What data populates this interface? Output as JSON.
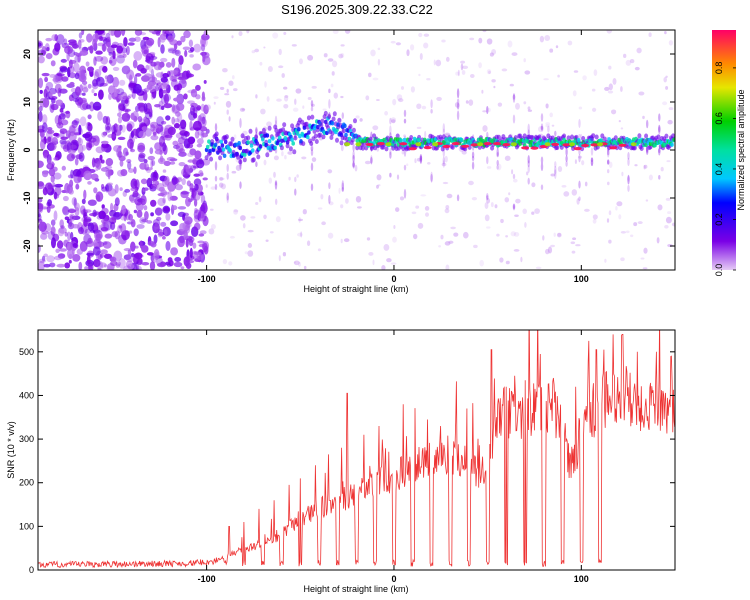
{
  "figure_title": "S196.2025.309.22.33.C22",
  "chart_data": [
    {
      "type": "heatmap",
      "name": "spectrogram",
      "xlabel": "Height of straight line (km)",
      "ylabel": "Frequency (Hz)",
      "xlim": [
        -190,
        150
      ],
      "ylim": [
        -25,
        25
      ],
      "xticks": [
        -100,
        0,
        100
      ],
      "xtick_labels": [
        "-100",
        "0",
        "100"
      ],
      "yticks": [
        -20,
        -10,
        0,
        10,
        20
      ],
      "ytick_labels": [
        "-20",
        "-10",
        "0",
        "10",
        "20"
      ],
      "colorbar": {
        "label": "Normalized spectral amplitude",
        "range": [
          0,
          0.95
        ],
        "ticks": [
          0.0,
          0.2,
          0.4,
          0.6,
          0.8
        ],
        "tick_labels": [
          "0.0",
          "0.2",
          "0.4",
          "0.6",
          "0.8"
        ],
        "colormap": "rainbow"
      },
      "regions": [
        {
          "x_range": [
            -190,
            -100
          ],
          "description_level": 0.1,
          "freq_spread": 25
        },
        {
          "x_range": [
            -100,
            -20
          ],
          "description_level": 0.25,
          "freq_spread": 5
        },
        {
          "x_range": [
            -20,
            150
          ],
          "description_level": 0.7,
          "freq_spread": 2
        }
      ]
    },
    {
      "type": "line",
      "name": "snr",
      "xlabel": "Height of straight line (km)",
      "ylabel": "SNR (10 * v/v)",
      "xlim": [
        -190,
        150
      ],
      "ylim": [
        0,
        550
      ],
      "xticks": [
        -100,
        0,
        100
      ],
      "xtick_labels": [
        "-100",
        "0",
        "100"
      ],
      "yticks": [
        0,
        100,
        200,
        300,
        400,
        500
      ],
      "ytick_labels": [
        "0",
        "100",
        "200",
        "300",
        "400",
        "500"
      ],
      "color": "#ee3333",
      "baseline": [
        [
          -190,
          12
        ],
        [
          -110,
          15
        ],
        [
          -95,
          20
        ],
        [
          -85,
          40
        ],
        [
          -70,
          60
        ],
        [
          -60,
          80
        ],
        [
          -50,
          120
        ],
        [
          -40,
          140
        ],
        [
          -30,
          160
        ],
        [
          -20,
          170
        ],
        [
          -10,
          200
        ],
        [
          0,
          215
        ],
        [
          10,
          235
        ],
        [
          20,
          250
        ],
        [
          30,
          265
        ],
        [
          40,
          250
        ],
        [
          45,
          215
        ],
        [
          50,
          255
        ],
        [
          55,
          350
        ],
        [
          60,
          370
        ],
        [
          65,
          350
        ],
        [
          70,
          340
        ],
        [
          75,
          380
        ],
        [
          80,
          380
        ],
        [
          85,
          370
        ],
        [
          90,
          330
        ],
        [
          93,
          250
        ],
        [
          96,
          240
        ],
        [
          100,
          330
        ],
        [
          110,
          380
        ],
        [
          120,
          400
        ],
        [
          130,
          380
        ],
        [
          140,
          380
        ],
        [
          150,
          375
        ]
      ],
      "spikes": [
        {
          "x": -88,
          "y": 100
        },
        {
          "x": -80,
          "y": 110
        },
        {
          "x": -72,
          "y": 140
        },
        {
          "x": -64,
          "y": 160
        },
        {
          "x": -56,
          "y": 195
        },
        {
          "x": -50,
          "y": 210
        },
        {
          "x": -42,
          "y": 240
        },
        {
          "x": -35,
          "y": 265
        },
        {
          "x": -28,
          "y": 280
        },
        {
          "x": -25,
          "y": 405
        },
        {
          "x": -16,
          "y": 310
        },
        {
          "x": -8,
          "y": 330
        },
        {
          "x": 5,
          "y": 380
        },
        {
          "x": 18,
          "y": 345
        },
        {
          "x": 25,
          "y": 330
        },
        {
          "x": 33,
          "y": 340
        },
        {
          "x": 39,
          "y": 370
        },
        {
          "x": 52,
          "y": 505
        },
        {
          "x": 60,
          "y": 420
        },
        {
          "x": 70,
          "y": 435
        },
        {
          "x": 78,
          "y": 495
        },
        {
          "x": 85,
          "y": 440
        },
        {
          "x": 97,
          "y": 420
        },
        {
          "x": 104,
          "y": 525
        },
        {
          "x": 108,
          "y": 505
        },
        {
          "x": 112,
          "y": 505
        },
        {
          "x": 117,
          "y": 540
        },
        {
          "x": 122,
          "y": 540
        },
        {
          "x": 130,
          "y": 500
        },
        {
          "x": 140,
          "y": 500
        },
        {
          "x": 148,
          "y": 490
        }
      ],
      "dropouts": [
        -90,
        -80,
        -70,
        -60,
        -50,
        -40,
        -30,
        -20,
        -10,
        0,
        10,
        20,
        30,
        40,
        50,
        60,
        70,
        80,
        90,
        100,
        110
      ]
    }
  ]
}
